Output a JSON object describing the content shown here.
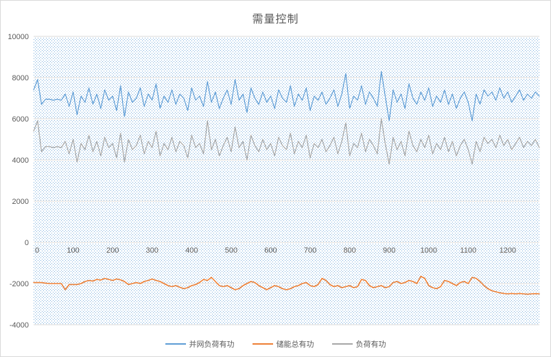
{
  "title": "需量控制",
  "colors": {
    "series_blue": "#5B9BD5",
    "series_orange": "#ED7D31",
    "series_gray": "#A5A5A5",
    "gridline": "#D9D9D9",
    "axis_text": "#595959",
    "title_text": "#595959",
    "pattern_dot": "#5B9BD5",
    "chart_border": "#D9D9D9",
    "background": "#FFFFFF"
  },
  "legend": {
    "position": "bottom-center",
    "items": [
      {
        "label": "并网负荷有功",
        "color": "#5B9BD5"
      },
      {
        "label": "储能总有功",
        "color": "#ED7D31"
      },
      {
        "label": "负荷有功",
        "color": "#A5A5A5"
      }
    ]
  },
  "chart_data": {
    "type": "line",
    "title": "需量控制",
    "xlabel": "",
    "ylabel": "",
    "xlim": [
      0,
      1280
    ],
    "ylim": [
      -4000,
      10000
    ],
    "x_ticks": [
      0,
      100,
      200,
      300,
      400,
      500,
      600,
      700,
      800,
      900,
      1000,
      1100,
      1200
    ],
    "y_ticks": [
      10000,
      8000,
      6000,
      4000,
      2000,
      0,
      -2000,
      -4000
    ],
    "grid": "horizontal",
    "plot_background": "blue-dot-pattern",
    "legend_position": "bottom",
    "x_start": 0,
    "x_step": 10,
    "series": [
      {
        "name": "并网负荷有功",
        "color": "#5B9BD5",
        "values": [
          7400,
          7900,
          6700,
          6950,
          6950,
          6900,
          6950,
          6900,
          7200,
          6600,
          7300,
          6200,
          7100,
          6800,
          7500,
          6700,
          7200,
          6500,
          7400,
          6900,
          7100,
          6400,
          7600,
          6100,
          7300,
          6800,
          7000,
          7500,
          6600,
          7200,
          6900,
          7700,
          6500,
          7100,
          6800,
          7400,
          6700,
          7200,
          7000,
          6400,
          7500,
          6900,
          7100,
          6600,
          7800,
          6800,
          7300,
          6500,
          7000,
          7400,
          6700,
          7900,
          6900,
          7200,
          6300,
          7500,
          7000,
          6700,
          7300,
          6800,
          7100,
          6500,
          7400,
          7000,
          6800,
          7600,
          6600,
          7200,
          6900,
          7500,
          6400,
          7100,
          6900,
          7300,
          6700,
          7000,
          7400,
          6600,
          7200,
          8200,
          6500,
          7100,
          6900,
          7600,
          6700,
          7300,
          7000,
          6600,
          8300,
          7100,
          5900,
          7400,
          6800,
          7200,
          6500,
          7700,
          7000,
          6700,
          7300,
          6900,
          7500,
          6600,
          7100,
          6800,
          7400,
          6700,
          7200,
          6500,
          7000,
          7300,
          6800,
          5900,
          7200,
          6700,
          7400,
          7100,
          7300,
          6900,
          7500,
          7000,
          7300,
          6800,
          7100,
          7400,
          6900,
          7200,
          7000,
          7300,
          7100
        ]
      },
      {
        "name": "储能总有功",
        "color": "#ED7D31",
        "values": [
          -1950,
          -1950,
          -1950,
          -1980,
          -2000,
          -2000,
          -2000,
          -2000,
          -2300,
          -2050,
          -2050,
          -2050,
          -2000,
          -1900,
          -1850,
          -1880,
          -1800,
          -1830,
          -1750,
          -1800,
          -1850,
          -1780,
          -1820,
          -1900,
          -2050,
          -2000,
          -1950,
          -2000,
          -1900,
          -1850,
          -1780,
          -1850,
          -1900,
          -2000,
          -2100,
          -2150,
          -2100,
          -2180,
          -2250,
          -2200,
          -2100,
          -2050,
          -1950,
          -1800,
          -1850,
          -1700,
          -1900,
          -2100,
          -2150,
          -2100,
          -2200,
          -2300,
          -2250,
          -2100,
          -2000,
          -1900,
          -1950,
          -2100,
          -2200,
          -2300,
          -2200,
          -2100,
          -2150,
          -2250,
          -2300,
          -2250,
          -2150,
          -2100,
          -2000,
          -1950,
          -2100,
          -2150,
          -2050,
          -1750,
          -1850,
          -2050,
          -2150,
          -2100,
          -2200,
          -2150,
          -2100,
          -2200,
          -2150,
          -1800,
          -1850,
          -2100,
          -2200,
          -2150,
          -2100,
          -2200,
          -2150,
          -1950,
          -1900,
          -2000,
          -1950,
          -1850,
          -1900,
          -2000,
          -1650,
          -1750,
          -2100,
          -2200,
          -2250,
          -2150,
          -1850,
          -1900,
          -2000,
          -2100,
          -1950,
          -1900,
          -2000,
          -1700,
          -1750,
          -1900,
          -2100,
          -2250,
          -2350,
          -2400,
          -2450,
          -2480,
          -2500,
          -2480,
          -2500,
          -2480,
          -2500,
          -2520,
          -2500,
          -2490,
          -2500
        ]
      },
      {
        "name": "负荷有功",
        "color": "#A5A5A5",
        "values": [
          5400,
          5900,
          4400,
          4650,
          4650,
          4600,
          4650,
          4600,
          4900,
          4300,
          5000,
          3900,
          4800,
          4500,
          5200,
          4400,
          4900,
          4200,
          5100,
          4600,
          4800,
          4100,
          5300,
          3900,
          5000,
          4500,
          4700,
          5200,
          4300,
          4900,
          4600,
          5400,
          4200,
          4800,
          4500,
          5100,
          4400,
          4900,
          4700,
          4100,
          5200,
          4600,
          4800,
          4300,
          5900,
          4500,
          5000,
          4200,
          4700,
          5100,
          4400,
          5600,
          4600,
          4900,
          4000,
          5200,
          4700,
          4400,
          5000,
          4500,
          4800,
          4200,
          5100,
          4700,
          4500,
          5300,
          4300,
          4900,
          4600,
          5200,
          4100,
          4800,
          4600,
          5000,
          4400,
          4700,
          5100,
          4300,
          4900,
          5800,
          4200,
          4800,
          4600,
          5300,
          4400,
          5000,
          4700,
          4300,
          6000,
          4800,
          3800,
          5100,
          4500,
          4900,
          4200,
          5400,
          4700,
          4400,
          5000,
          4600,
          5200,
          4300,
          4800,
          4500,
          5100,
          4400,
          4900,
          4200,
          4700,
          5000,
          4500,
          3800,
          4900,
          4400,
          5100,
          4800,
          5000,
          4600,
          5200,
          4700,
          5000,
          4500,
          4800,
          5100,
          4600,
          4900,
          4700,
          5000,
          4600
        ]
      }
    ]
  }
}
